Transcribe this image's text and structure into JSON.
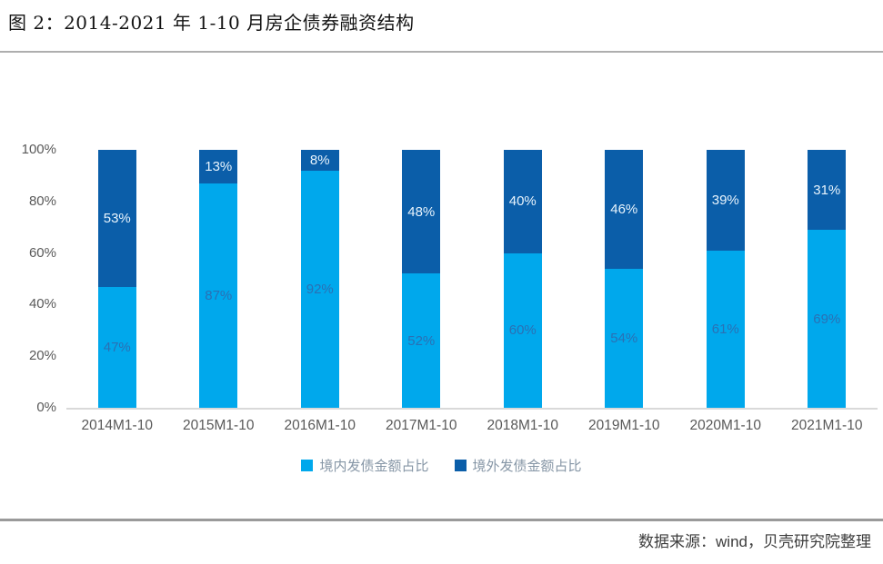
{
  "title": "图 2：2014-2021 年 1-10 月房企债券融资结构",
  "source": "数据来源：wind，贝壳研究院整理",
  "colors": {
    "domestic": "#00a8ec",
    "overseas": "#0b5ea9",
    "label_on_light": "#2a70b4",
    "label_on_dark": "#e8f4fd",
    "axis_text": "#595959",
    "legend_text": "#8696a6",
    "axis_line": "#d9d9d9",
    "title_divider": "#aeaeae",
    "footer_divider": "#9a9a9a"
  },
  "chart_data": {
    "type": "bar",
    "stacked": true,
    "title": "图 2：2014-2021 年 1-10 月房企债券融资结构",
    "categories": [
      "2014M1-10",
      "2015M1-10",
      "2016M1-10",
      "2017M1-10",
      "2018M1-10",
      "2019M1-10",
      "2020M1-10",
      "2021M1-10"
    ],
    "series": [
      {
        "name": "境内发债金额占比",
        "color_key": "domestic",
        "values": [
          47,
          87,
          92,
          52,
          60,
          54,
          61,
          69
        ]
      },
      {
        "name": "境外发债金额占比",
        "color_key": "overseas",
        "values": [
          53,
          13,
          8,
          48,
          40,
          46,
          39,
          31
        ]
      }
    ],
    "y_ticks": [
      "0%",
      "20%",
      "40%",
      "60%",
      "80%",
      "100%"
    ],
    "ylim": [
      0,
      100
    ],
    "ylabel": "",
    "xlabel": "",
    "grid": false,
    "legend_position": "bottom",
    "data_label_format": "percent"
  }
}
